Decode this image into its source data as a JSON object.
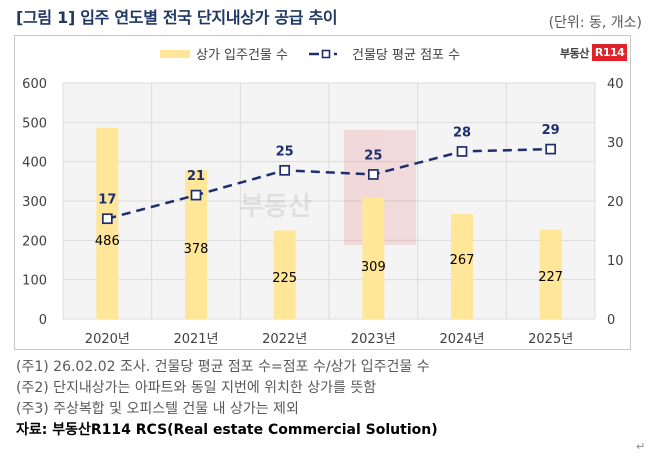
{
  "header": {
    "title": "[그림 1] 입주 연도별 전국 단지내상가 공급 추이",
    "unit": "(단위: 동, 개소)"
  },
  "logo": {
    "text": "부동산",
    "badge": "R114",
    "badge_color": "#E0222B"
  },
  "chart_data": {
    "type": "bar+line",
    "title": "입주 연도별 전국 단지내상가 공급 추이",
    "categories": [
      "2020년",
      "2021년",
      "2022년",
      "2023년",
      "2024년",
      "2025년"
    ],
    "series": [
      {
        "name": "상가 입주건물 수",
        "type": "bar",
        "axis": "left",
        "color": "#FFE699",
        "values": [
          486,
          378,
          225,
          309,
          267,
          227
        ]
      },
      {
        "name": "건물당 평균 점포 수",
        "type": "line",
        "style": "dashed",
        "marker": "square",
        "axis": "right",
        "color": "#1F2E6E",
        "values": [
          17,
          21,
          25,
          25,
          28,
          29
        ],
        "plotted_values": [
          17,
          21,
          25.2,
          24.5,
          28.4,
          28.8
        ]
      }
    ],
    "y_left": {
      "ylim": [
        0,
        600
      ],
      "ticks": [
        "0",
        "100",
        "200",
        "300",
        "400",
        "500",
        "600"
      ]
    },
    "y_right": {
      "ylim": [
        0,
        40
      ],
      "ticks": [
        "0",
        "10",
        "20",
        "30",
        "40"
      ]
    },
    "grid": true,
    "legend": "top-center",
    "xlabel": "",
    "ylabel": ""
  },
  "notes": [
    "(주1) 26.02.02 조사. 건물당 평균 점포 수=점포 수/상가 입주건물 수",
    "(주2) 단지내상가는 아파트와 동일 지번에 위치한 상가를 뜻함",
    "(주3) 주상복합 및 오피스텔 건물 내 상가는 제외"
  ],
  "source": "자료: 부동산R114 RCS(Real estate Commercial Solution)",
  "return_mark": "↵"
}
